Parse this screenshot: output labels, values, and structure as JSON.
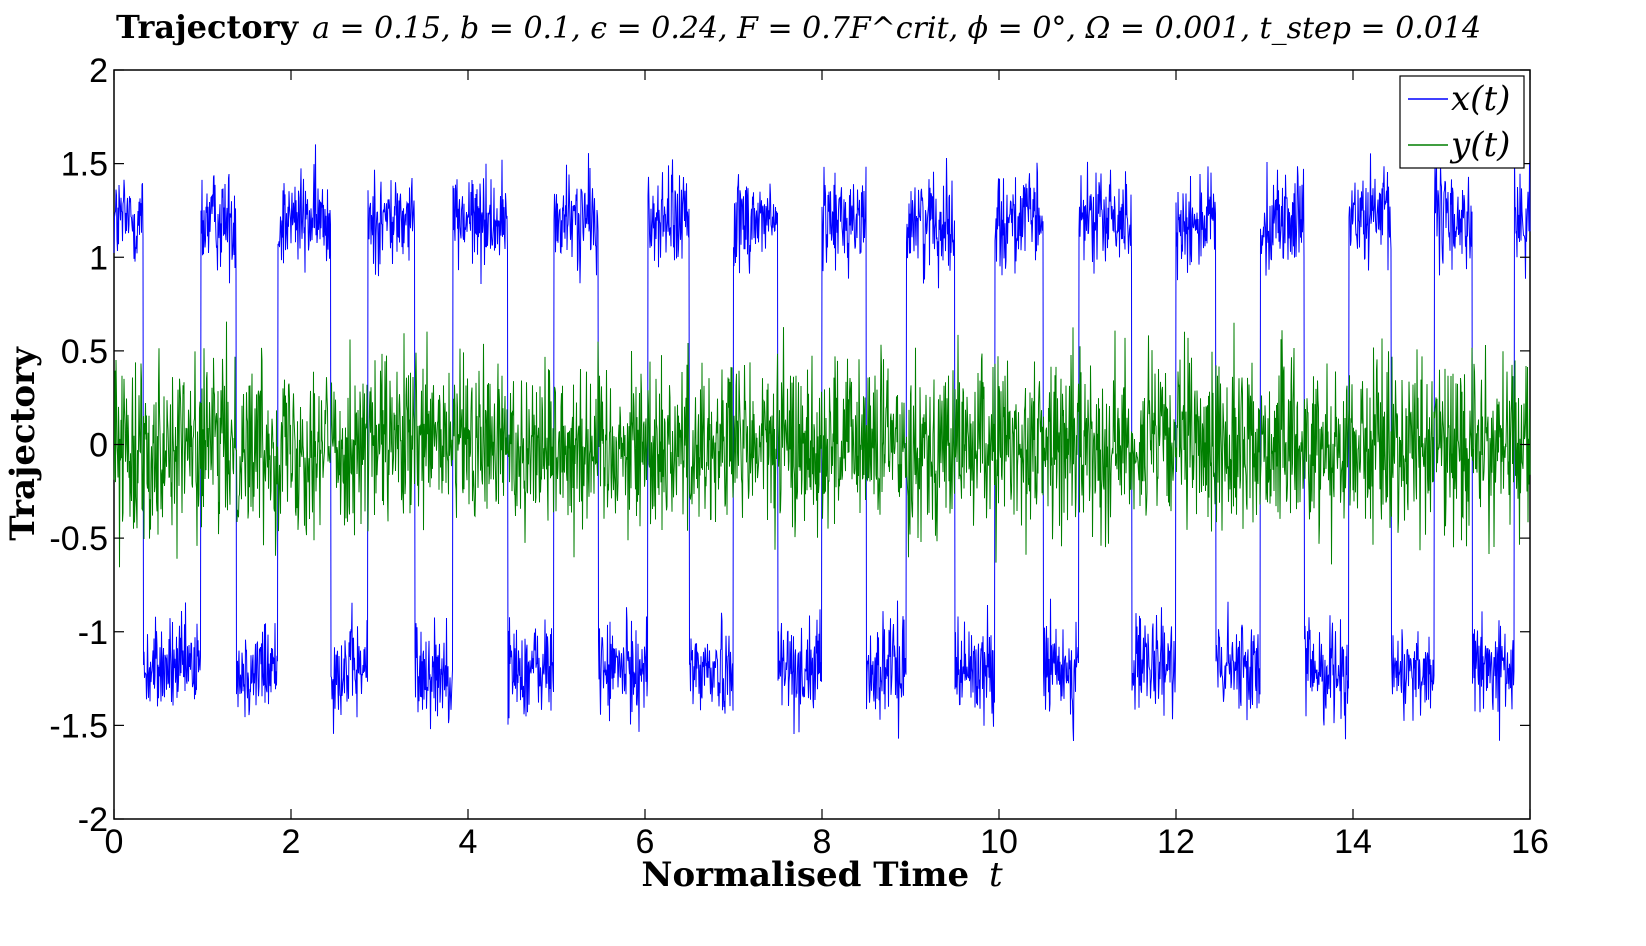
{
  "chart_data": {
    "type": "line",
    "title": "Trajectory",
    "title_math": "a = 0.15, b = 0.1, ϵ = 0.24, F = 0.7F^crit, ϕ = 0°, Ω = 0.001, t_step = 0.014",
    "xlabel": "Normalised Time",
    "xlabel_var": "t",
    "ylabel": "Trajectory",
    "xlim": [
      0,
      16
    ],
    "ylim": [
      -2,
      2
    ],
    "xticks": [
      0,
      2,
      4,
      6,
      8,
      10,
      12,
      14,
      16
    ],
    "yticks": [
      2,
      1.5,
      1,
      0.5,
      0,
      -0.5,
      -1,
      -1.5,
      -2
    ],
    "ytick_labels": [
      "2",
      "1.5",
      "1",
      "0.5",
      "0",
      "-0.5",
      "-1",
      "-1.5",
      "-2"
    ],
    "grid": false,
    "legend_position": "top-right",
    "series": [
      {
        "name": "x(t)",
        "color": "#0000ff",
        "description": "stochastic switching between wells near +1.2 and -1.2",
        "well_center": 1.2,
        "noise_amplitude": 0.3,
        "switch_times": [
          0.33,
          0.98,
          1.38,
          1.85,
          2.45,
          2.87,
          3.4,
          3.83,
          4.45,
          4.97,
          5.47,
          6.03,
          6.5,
          7.0,
          7.5,
          8.0,
          8.5,
          8.95,
          9.5,
          9.95,
          10.5,
          10.9,
          11.5,
          12.0,
          12.45,
          12.95,
          13.45,
          13.95,
          14.43,
          14.92,
          15.35,
          15.82
        ],
        "start_state": "upper"
      },
      {
        "name": "y(t)",
        "color": "#007f00",
        "description": "noise centered at 0 with amplitude about ±0.5, peaks near ±0.9",
        "center": 0.0,
        "amplitude": 0.5
      }
    ]
  }
}
